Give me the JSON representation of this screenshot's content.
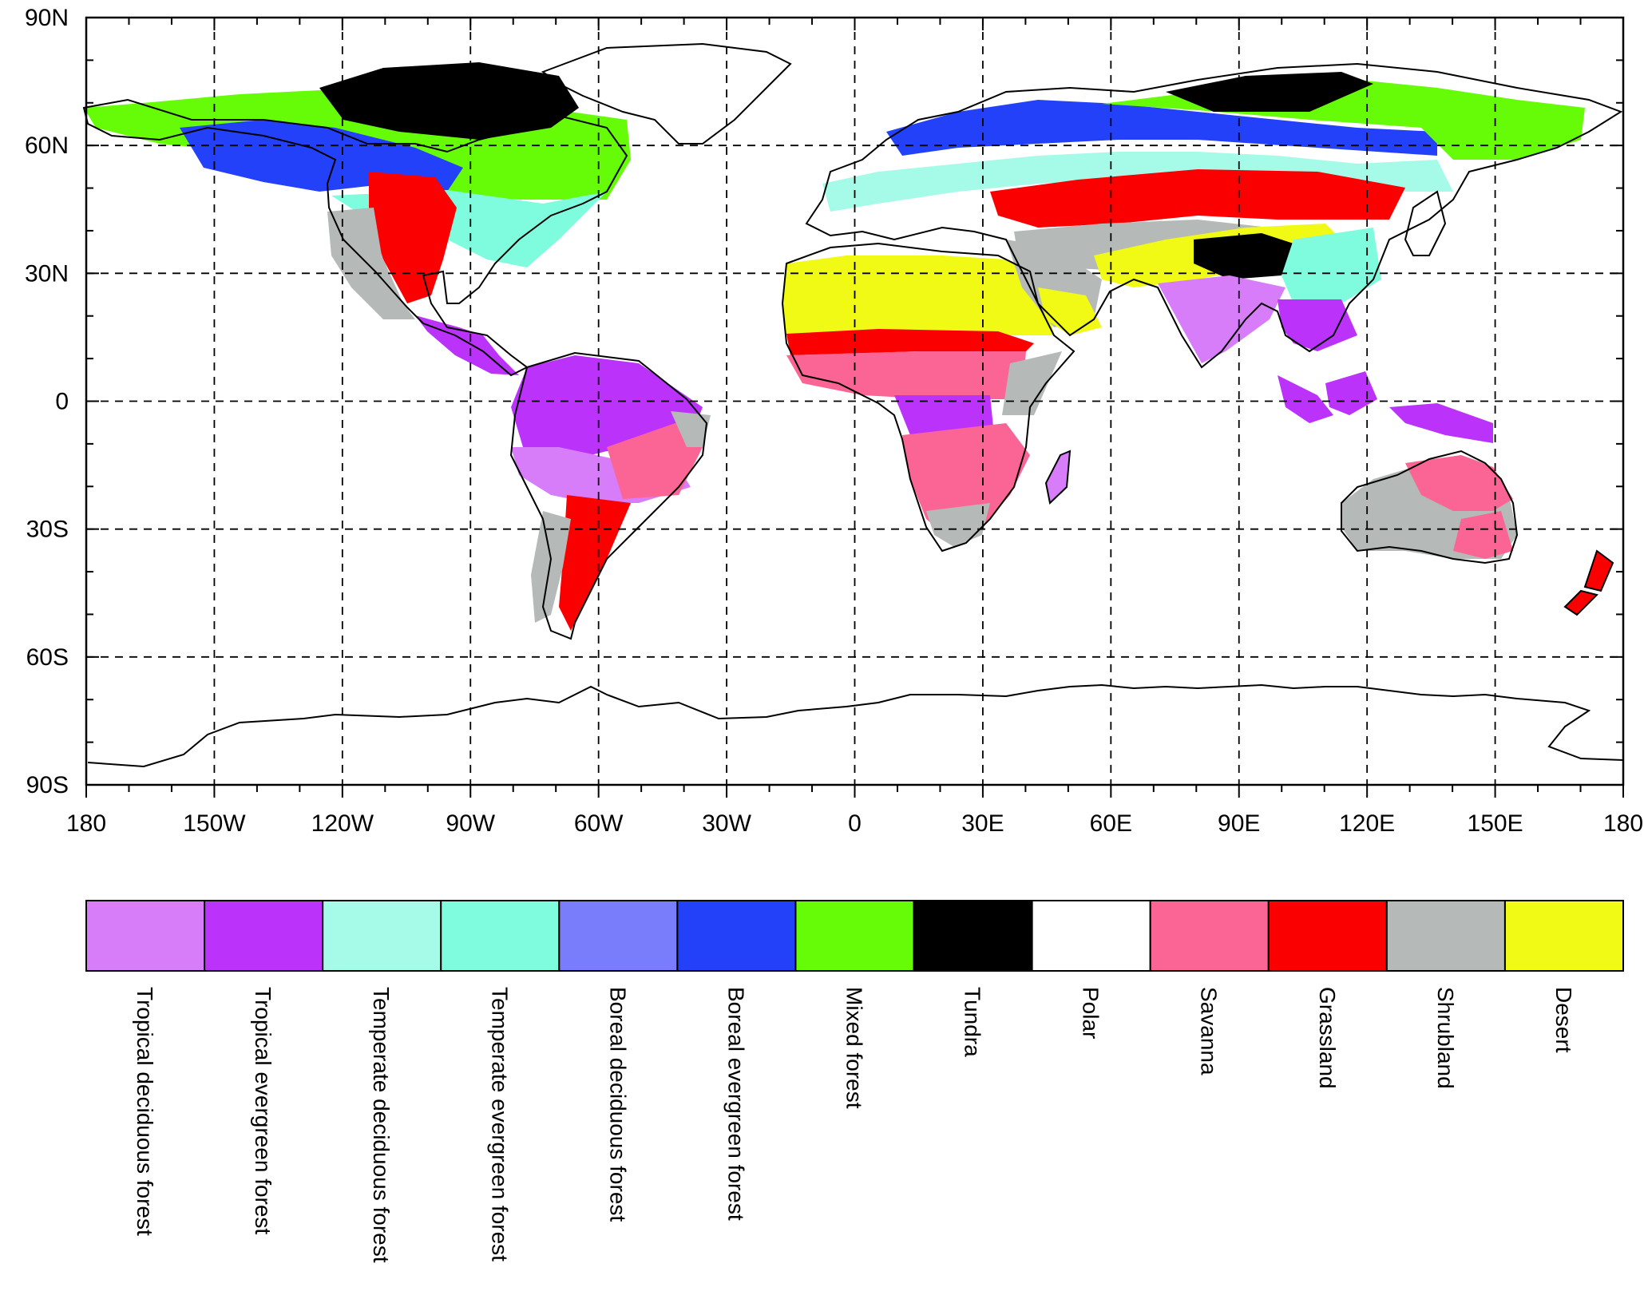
{
  "map": {
    "projection": "equirectangular",
    "lon_range": [
      -180,
      180
    ],
    "lat_range": [
      -90,
      90
    ],
    "gridlines": "dashed",
    "lat_ticks": [
      {
        "value": 90,
        "label": "90N"
      },
      {
        "value": 60,
        "label": "60N"
      },
      {
        "value": 30,
        "label": "30N"
      },
      {
        "value": 0,
        "label": "0"
      },
      {
        "value": -30,
        "label": "30S"
      },
      {
        "value": -60,
        "label": "60S"
      },
      {
        "value": -90,
        "label": "90S"
      }
    ],
    "lon_ticks": [
      {
        "value": -180,
        "label": "180"
      },
      {
        "value": -150,
        "label": "150W"
      },
      {
        "value": -120,
        "label": "120W"
      },
      {
        "value": -90,
        "label": "90W"
      },
      {
        "value": -60,
        "label": "60W"
      },
      {
        "value": -30,
        "label": "30W"
      },
      {
        "value": 0,
        "label": "0"
      },
      {
        "value": 30,
        "label": "30E"
      },
      {
        "value": 60,
        "label": "60E"
      },
      {
        "value": 90,
        "label": "90E"
      },
      {
        "value": 120,
        "label": "120E"
      },
      {
        "value": 150,
        "label": "150E"
      },
      {
        "value": 180,
        "label": "180"
      }
    ]
  },
  "legend": {
    "items": [
      {
        "label": "Tropical deciduous forest",
        "color": "#d77dfa"
      },
      {
        "label": "Tropical evergreen forest",
        "color": "#bb33fb"
      },
      {
        "label": "Temperate deciduous forest",
        "color": "#a6fbe8"
      },
      {
        "label": "Temperate evergreen forest",
        "color": "#7ffbdd"
      },
      {
        "label": "Boreal deciduous forest",
        "color": "#7a7dfb"
      },
      {
        "label": "Boreal evergreen forest",
        "color": "#2441fa"
      },
      {
        "label": "Mixed forest",
        "color": "#66fb06"
      },
      {
        "label": "Tundra",
        "color": "#000000"
      },
      {
        "label": "Polar",
        "color": "#ffffff"
      },
      {
        "label": "Savanna",
        "color": "#fb6595"
      },
      {
        "label": "Grassland",
        "color": "#fb0000"
      },
      {
        "label": "Shrubland",
        "color": "#b5bab9"
      },
      {
        "label": "Desert",
        "color": "#f0fa14"
      }
    ]
  }
}
